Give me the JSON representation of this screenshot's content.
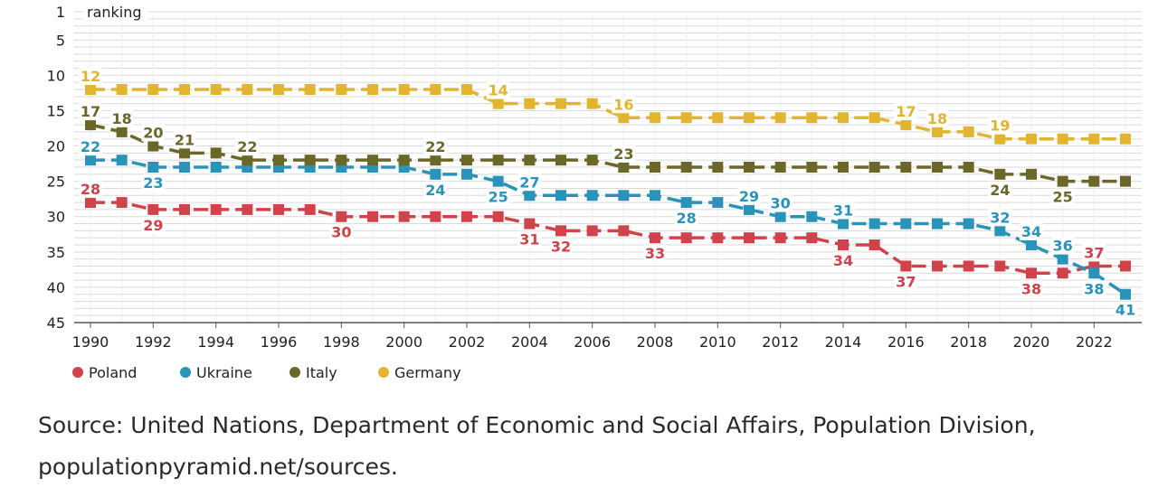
{
  "chart_data": {
    "type": "line",
    "ylabel": "ranking",
    "y_inverted": true,
    "ylim": [
      1,
      45
    ],
    "y_ticks": [
      1,
      5,
      10,
      15,
      20,
      25,
      30,
      35,
      40,
      45
    ],
    "x_ticks": [
      1990,
      1992,
      1994,
      1996,
      1998,
      2000,
      2002,
      2004,
      2006,
      2008,
      2010,
      2012,
      2014,
      2016,
      2018,
      2020,
      2022
    ],
    "x": [
      1990,
      1991,
      1992,
      1993,
      1994,
      1995,
      1996,
      1997,
      1998,
      1999,
      2000,
      2001,
      2002,
      2003,
      2004,
      2005,
      2006,
      2007,
      2008,
      2009,
      2010,
      2011,
      2012,
      2013,
      2014,
      2015,
      2016,
      2017,
      2018,
      2019,
      2020,
      2021,
      2022,
      2023
    ],
    "legend_position": "bottom-left",
    "series": [
      {
        "name": "Poland",
        "color": "#d0434b",
        "values": [
          28,
          28,
          29,
          29,
          29,
          29,
          29,
          29,
          30,
          30,
          30,
          30,
          30,
          30,
          31,
          32,
          32,
          32,
          33,
          33,
          33,
          33,
          33,
          33,
          34,
          34,
          37,
          37,
          37,
          37,
          38,
          38,
          37,
          37
        ],
        "labels": [
          {
            "year": 1990,
            "text": "28"
          },
          {
            "year": 1992,
            "text": "29"
          },
          {
            "year": 1998,
            "text": "30"
          },
          {
            "year": 2004,
            "text": "31"
          },
          {
            "year": 2005,
            "text": "32"
          },
          {
            "year": 2008,
            "text": "33"
          },
          {
            "year": 2014,
            "text": "34"
          },
          {
            "year": 2016,
            "text": "37"
          },
          {
            "year": 2020,
            "text": "38"
          },
          {
            "year": 2022,
            "text": "37"
          }
        ]
      },
      {
        "name": "Ukraine",
        "color": "#2a93b9",
        "values": [
          22,
          22,
          23,
          23,
          23,
          23,
          23,
          23,
          23,
          23,
          23,
          24,
          24,
          25,
          27,
          27,
          27,
          27,
          27,
          28,
          28,
          29,
          30,
          30,
          31,
          31,
          31,
          31,
          31,
          32,
          34,
          36,
          38,
          41
        ],
        "labels": [
          {
            "year": 1990,
            "text": "22"
          },
          {
            "year": 1992,
            "text": "23"
          },
          {
            "year": 2001,
            "text": "24"
          },
          {
            "year": 2003,
            "text": "25"
          },
          {
            "year": 2004,
            "text": "27"
          },
          {
            "year": 2009,
            "text": "28"
          },
          {
            "year": 2011,
            "text": "29"
          },
          {
            "year": 2012,
            "text": "30"
          },
          {
            "year": 2014,
            "text": "31"
          },
          {
            "year": 2019,
            "text": "32"
          },
          {
            "year": 2020,
            "text": "34"
          },
          {
            "year": 2021,
            "text": "36"
          },
          {
            "year": 2022,
            "text": "38"
          },
          {
            "year": 2023,
            "text": "41"
          }
        ]
      },
      {
        "name": "Italy",
        "color": "#6b6728",
        "values": [
          17,
          18,
          20,
          21,
          21,
          22,
          22,
          22,
          22,
          22,
          22,
          22,
          22,
          22,
          22,
          22,
          22,
          23,
          23,
          23,
          23,
          23,
          23,
          23,
          23,
          23,
          23,
          23,
          23,
          24,
          24,
          25,
          25,
          25
        ],
        "labels": [
          {
            "year": 1990,
            "text": "17"
          },
          {
            "year": 1991,
            "text": "18"
          },
          {
            "year": 1992,
            "text": "20"
          },
          {
            "year": 1993,
            "text": "21"
          },
          {
            "year": 1995,
            "text": "22"
          },
          {
            "year": 2001,
            "text": "22"
          },
          {
            "year": 2007,
            "text": "23"
          },
          {
            "year": 2019,
            "text": "24"
          },
          {
            "year": 2021,
            "text": "25"
          }
        ]
      },
      {
        "name": "Germany",
        "color": "#e3b42e",
        "values": [
          12,
          12,
          12,
          12,
          12,
          12,
          12,
          12,
          12,
          12,
          12,
          12,
          12,
          14,
          14,
          14,
          14,
          16,
          16,
          16,
          16,
          16,
          16,
          16,
          16,
          16,
          17,
          18,
          18,
          19,
          19,
          19,
          19,
          19
        ],
        "labels": [
          {
            "year": 1990,
            "text": "12"
          },
          {
            "year": 2003,
            "text": "14"
          },
          {
            "year": 2007,
            "text": "16"
          },
          {
            "year": 2016,
            "text": "17"
          },
          {
            "year": 2017,
            "text": "18"
          },
          {
            "year": 2019,
            "text": "19"
          }
        ]
      }
    ]
  },
  "source": {
    "line1": "Source: United Nations, Department of Economic and Social Affairs, Population Division,",
    "line2": "populationpyramid.net/sources."
  }
}
